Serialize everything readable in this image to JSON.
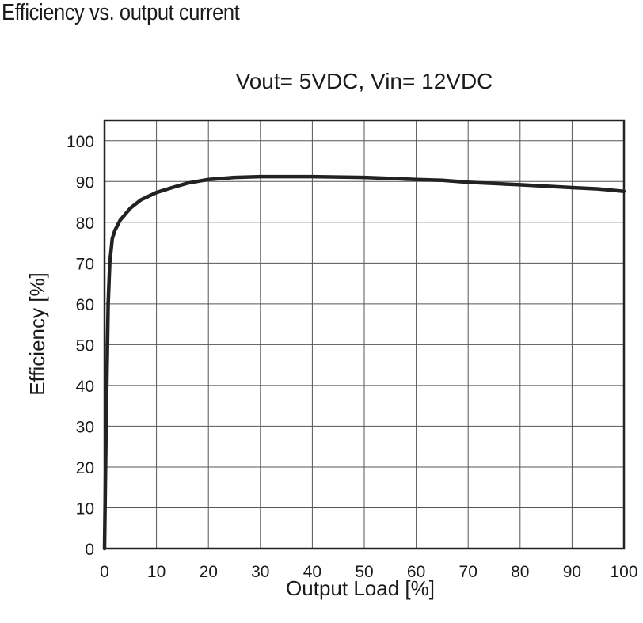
{
  "title": "Efficiency vs. output current",
  "chart_data": {
    "type": "line",
    "subtitle": "Vout= 5VDC, Vin= 12VDC",
    "xlabel": "Output Load [%]",
    "ylabel": "Efficiency [%]",
    "xlim": [
      0,
      100
    ],
    "ylim": [
      0,
      105
    ],
    "xticks": [
      0,
      10,
      20,
      30,
      40,
      50,
      60,
      70,
      80,
      90,
      100
    ],
    "yticks": [
      0,
      10,
      20,
      30,
      40,
      50,
      60,
      70,
      80,
      90,
      100
    ],
    "grid": true,
    "line_color": "#222222",
    "series": [
      {
        "x": [
          0,
          0.3,
          0.7,
          1.0,
          1.5,
          2,
          3,
          5,
          7,
          10,
          13,
          16,
          20,
          25,
          30,
          40,
          50,
          60,
          65,
          70,
          80,
          90,
          95,
          100
        ],
        "y": [
          0,
          30,
          60,
          70,
          76,
          78,
          80.5,
          83.5,
          85.5,
          87.3,
          88.5,
          89.6,
          90.5,
          91.0,
          91.2,
          91.2,
          91.0,
          90.5,
          90.3,
          89.8,
          89.2,
          88.5,
          88.2,
          87.6
        ]
      }
    ]
  }
}
